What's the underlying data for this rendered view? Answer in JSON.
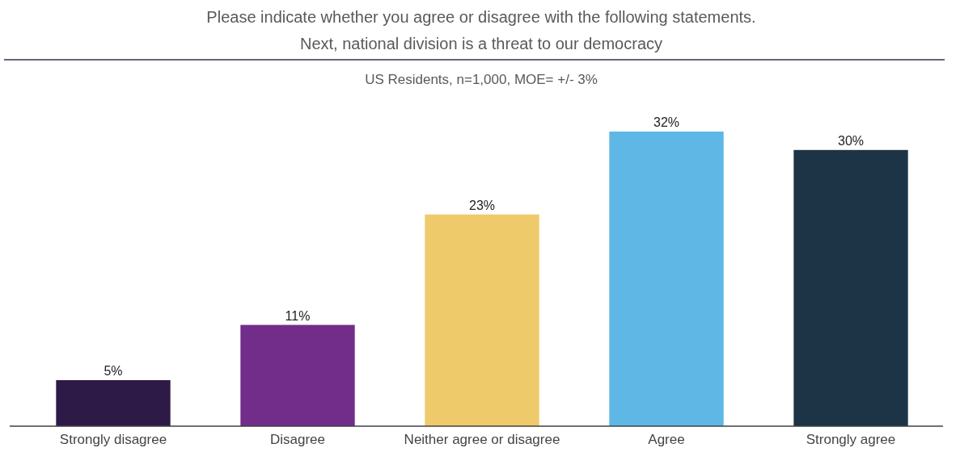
{
  "chart_data": {
    "type": "bar",
    "title": "Please indicate whether you agree or disagree with the following statements.\nNext, national division is a threat to our democracy",
    "subtitle": "US Residents, n=1,000, MOE= +/- 3%",
    "categories": [
      "Strongly disagree",
      "Disagree",
      "Neither agree or disagree",
      "Agree",
      "Strongly agree"
    ],
    "values": [
      5,
      11,
      23,
      32,
      30
    ],
    "colors": [
      "#2e1a47",
      "#722d8a",
      "#eeca6a",
      "#5eb7e5",
      "#1c3446"
    ],
    "value_labels": [
      "5%",
      "11%",
      "23%",
      "32%",
      "30%"
    ]
  }
}
